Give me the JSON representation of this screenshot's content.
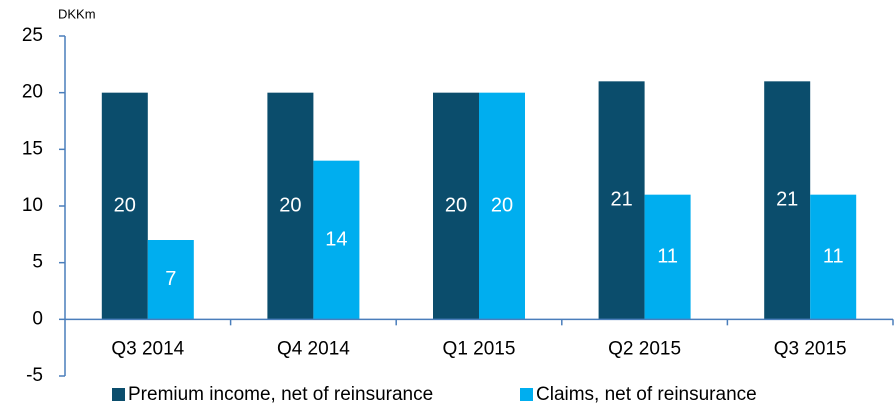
{
  "chart_data": {
    "type": "bar",
    "y_axis_label": "DKKm",
    "categories": [
      "Q3 2014",
      "Q4 2014",
      "Q1 2015",
      "Q2 2015",
      "Q3 2015"
    ],
    "series": [
      {
        "name": "Premium income, net of reinsurance",
        "color": "#0b4d6c",
        "values": [
          20,
          20,
          20,
          21,
          21
        ]
      },
      {
        "name": "Claims, net of reinsurance",
        "color": "#00aeef",
        "values": [
          7,
          14,
          20,
          11,
          11
        ]
      }
    ],
    "ylim": [
      -5,
      25
    ],
    "yticks": [
      -5,
      0,
      5,
      10,
      15,
      20,
      25
    ],
    "grid": false,
    "legend": "bottom"
  }
}
